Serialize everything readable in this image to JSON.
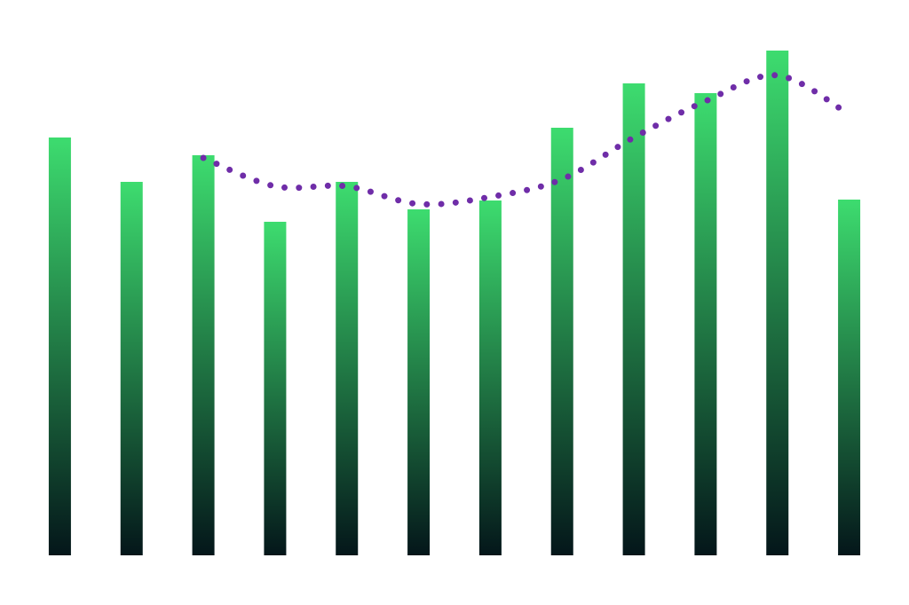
{
  "chart_data": {
    "type": "bar",
    "ylim": [
      0,
      600
    ],
    "series": [
      {
        "type": "bar",
        "color": "#3ddc6f",
        "gradient_end": "#04161a",
        "values": [
          471,
          421,
          451,
          376,
          421,
          390,
          400,
          482,
          532,
          521,
          569,
          401
        ]
      },
      {
        "type": "line",
        "color": "#6f2da8",
        "line_style": "dotted",
        "values": [
          null,
          null,
          448,
          416,
          416,
          396,
          404,
          424,
          471,
          512,
          541,
          497
        ]
      }
    ]
  }
}
